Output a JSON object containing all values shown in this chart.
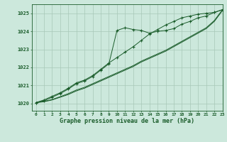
{
  "background_color": "#cce8dc",
  "grid_color": "#a8c8b8",
  "line_color": "#1a5c2a",
  "title": "Graphe pression niveau de la mer (hPa)",
  "xlim": [
    -0.5,
    23
  ],
  "ylim": [
    1019.6,
    1025.5
  ],
  "yticks": [
    1020,
    1021,
    1022,
    1023,
    1024,
    1025
  ],
  "xticks": [
    0,
    1,
    2,
    3,
    4,
    5,
    6,
    7,
    8,
    9,
    10,
    11,
    12,
    13,
    14,
    15,
    16,
    17,
    18,
    19,
    20,
    21,
    22,
    23
  ],
  "series1_x": [
    0,
    1,
    2,
    3,
    4,
    5,
    6,
    7,
    8,
    9,
    10,
    11,
    12,
    13,
    14,
    15,
    16,
    17,
    18,
    19,
    20,
    21,
    22,
    23
  ],
  "series1_y": [
    1020.05,
    1020.15,
    1020.35,
    1020.55,
    1020.8,
    1021.1,
    1021.25,
    1021.5,
    1021.85,
    1022.2,
    1024.05,
    1024.2,
    1024.1,
    1024.05,
    1023.9,
    1024.0,
    1024.05,
    1024.15,
    1024.4,
    1024.55,
    1024.75,
    1024.85,
    1025.05,
    1025.2
  ],
  "series2_x": [
    0,
    1,
    2,
    3,
    4,
    5,
    6,
    7,
    8,
    9,
    10,
    11,
    12,
    13,
    14,
    15,
    16,
    17,
    18,
    19,
    20,
    21,
    22,
    23
  ],
  "series2_y": [
    1020.05,
    1020.2,
    1020.4,
    1020.6,
    1020.85,
    1021.15,
    1021.3,
    1021.55,
    1021.9,
    1022.25,
    1022.55,
    1022.85,
    1023.15,
    1023.5,
    1023.85,
    1024.1,
    1024.35,
    1024.55,
    1024.75,
    1024.85,
    1024.95,
    1025.0,
    1025.05,
    1025.2
  ],
  "series3_x": [
    0,
    1,
    2,
    3,
    4,
    5,
    6,
    7,
    8,
    9,
    10,
    11,
    12,
    13,
    14,
    15,
    16,
    17,
    18,
    19,
    20,
    21,
    22,
    23
  ],
  "series3_y": [
    1020.05,
    1020.1,
    1020.2,
    1020.35,
    1020.5,
    1020.7,
    1020.85,
    1021.05,
    1021.25,
    1021.45,
    1021.65,
    1021.85,
    1022.05,
    1022.3,
    1022.5,
    1022.7,
    1022.9,
    1023.15,
    1023.4,
    1023.65,
    1023.9,
    1024.15,
    1024.55,
    1025.15
  ],
  "series4_x": [
    0,
    1,
    2,
    3,
    4,
    5,
    6,
    7,
    8,
    9,
    10,
    11,
    12,
    13,
    14,
    15,
    16,
    17,
    18,
    19,
    20,
    21,
    22,
    23
  ],
  "series4_y": [
    1020.05,
    1020.12,
    1020.22,
    1020.38,
    1020.55,
    1020.75,
    1020.9,
    1021.1,
    1021.3,
    1021.5,
    1021.7,
    1021.9,
    1022.1,
    1022.35,
    1022.55,
    1022.75,
    1022.95,
    1023.2,
    1023.45,
    1023.7,
    1023.95,
    1024.2,
    1024.6,
    1025.2
  ]
}
